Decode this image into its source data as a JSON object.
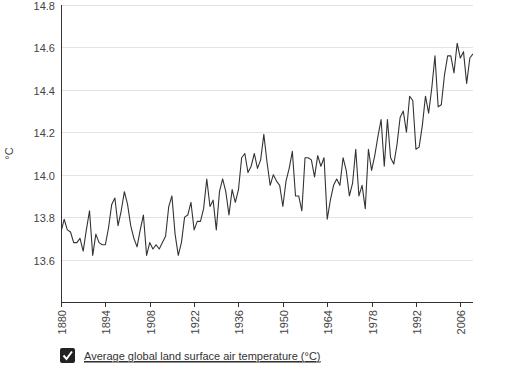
{
  "chart_data": {
    "type": "line",
    "x": [
      1880,
      1881,
      1882,
      1883,
      1884,
      1885,
      1886,
      1887,
      1888,
      1889,
      1890,
      1891,
      1892,
      1893,
      1894,
      1895,
      1896,
      1897,
      1898,
      1899,
      1900,
      1901,
      1902,
      1903,
      1904,
      1905,
      1906,
      1907,
      1908,
      1909,
      1910,
      1911,
      1912,
      1913,
      1914,
      1915,
      1916,
      1917,
      1918,
      1919,
      1920,
      1921,
      1922,
      1923,
      1924,
      1925,
      1926,
      1927,
      1928,
      1929,
      1930,
      1931,
      1932,
      1933,
      1934,
      1935,
      1936,
      1937,
      1938,
      1939,
      1940,
      1941,
      1942,
      1943,
      1944,
      1945,
      1946,
      1947,
      1948,
      1949,
      1950,
      1951,
      1952,
      1953,
      1954,
      1955,
      1956,
      1957,
      1958,
      1959,
      1960,
      1961,
      1962,
      1963,
      1964,
      1965,
      1966,
      1967,
      1968,
      1969,
      1970,
      1971,
      1972,
      1973,
      1974,
      1975,
      1976,
      1977,
      1978,
      1979,
      1980,
      1981,
      1982,
      1983,
      1984,
      1985,
      1986,
      1987,
      1988,
      1989,
      1990,
      1991,
      1992,
      1993,
      1994,
      1995,
      1996,
      1997,
      1998,
      1999,
      2000,
      2001,
      2002,
      2003,
      2004,
      2005,
      2006,
      2007,
      2008,
      2009,
      2010
    ],
    "series": [
      {
        "name": "Average global land surface air temperature (°C)",
        "color": "#333333",
        "values": [
          13.73,
          13.79,
          13.74,
          13.73,
          13.68,
          13.68,
          13.7,
          13.64,
          13.74,
          13.83,
          13.62,
          13.72,
          13.68,
          13.67,
          13.67,
          13.75,
          13.86,
          13.89,
          13.76,
          13.83,
          13.92,
          13.86,
          13.76,
          13.7,
          13.66,
          13.74,
          13.81,
          13.62,
          13.68,
          13.65,
          13.67,
          13.65,
          13.68,
          13.71,
          13.85,
          13.9,
          13.72,
          13.62,
          13.68,
          13.8,
          13.81,
          13.87,
          13.74,
          13.78,
          13.78,
          13.84,
          13.98,
          13.85,
          13.88,
          13.74,
          13.92,
          13.98,
          13.92,
          13.81,
          13.93,
          13.87,
          13.93,
          14.08,
          14.1,
          14.01,
          14.04,
          14.1,
          14.03,
          14.07,
          14.19,
          14.06,
          13.95,
          14.0,
          13.97,
          13.95,
          13.85,
          13.97,
          14.03,
          14.11,
          13.9,
          13.9,
          13.83,
          14.08,
          14.08,
          14.07,
          13.99,
          14.09,
          14.04,
          14.08,
          13.79,
          13.88,
          13.95,
          13.98,
          13.95,
          14.08,
          14.02,
          13.9,
          13.96,
          14.12,
          13.9,
          13.95,
          13.84,
          14.12,
          14.02,
          14.09,
          14.18,
          14.26,
          14.04,
          14.26,
          14.08,
          14.05,
          14.14,
          14.27,
          14.3,
          14.2,
          14.37,
          14.35,
          14.12,
          14.13,
          14.23,
          14.37,
          14.29,
          14.41,
          14.56,
          14.32,
          14.33,
          14.47,
          14.56,
          14.56,
          14.48,
          14.62,
          14.55,
          14.58,
          14.43,
          14.55,
          14.57
        ]
      }
    ],
    "xlim": [
      1880,
      2010
    ],
    "ylim": [
      13.4,
      14.8
    ],
    "xticks": [
      1880,
      1894,
      1908,
      1922,
      1936,
      1950,
      1964,
      1978,
      1992,
      2006
    ],
    "yticks": [
      13.6,
      13.8,
      {
        "value": 14,
        "label": "14.0"
      },
      14.2,
      14.4,
      14.6,
      14.8
    ],
    "y_label": "°C",
    "grid": true,
    "legend": "bottom-left"
  }
}
